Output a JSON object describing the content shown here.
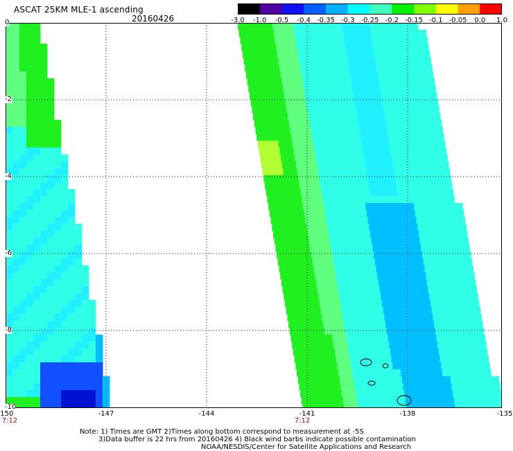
{
  "header": {
    "title": "ASCAT 25KM MLE-1 ascending",
    "date": "20160426"
  },
  "colorbar": {
    "labels": [
      "-3.0",
      "-1.0",
      "-0.5",
      "-0.4",
      "-0.35",
      "-0.3",
      "-0.25",
      "-0.2",
      "-0.15",
      "-0.1",
      "-0.05",
      "0.0",
      "1.0"
    ],
    "colors": [
      "#000000",
      "#5000a0",
      "#1010f0",
      "#0060ff",
      "#00b0ff",
      "#00ffff",
      "#40ffc0",
      "#00f000",
      "#80ff00",
      "#ffff00",
      "#ffa000",
      "#ff0000"
    ]
  },
  "axes": {
    "x_ticks": [
      "-150",
      "-147",
      "-144",
      "-141",
      "-138",
      "-135"
    ],
    "y_ticks": [
      "0",
      "-2",
      "-4",
      "-6",
      "-8",
      "-10"
    ],
    "time_labels": [
      "7:12",
      "7:12"
    ]
  },
  "notes": {
    "line1": "Note: 1) Times are GMT 2)Times along bottom correspond to measurement at -5S",
    "line2": "3)Data buffer is 22 hrs from 20160426 4) Black wind barbs indicate possible contamination",
    "line3": "NOAA/NESDIS/Center for Satellite Applications and Research"
  }
}
